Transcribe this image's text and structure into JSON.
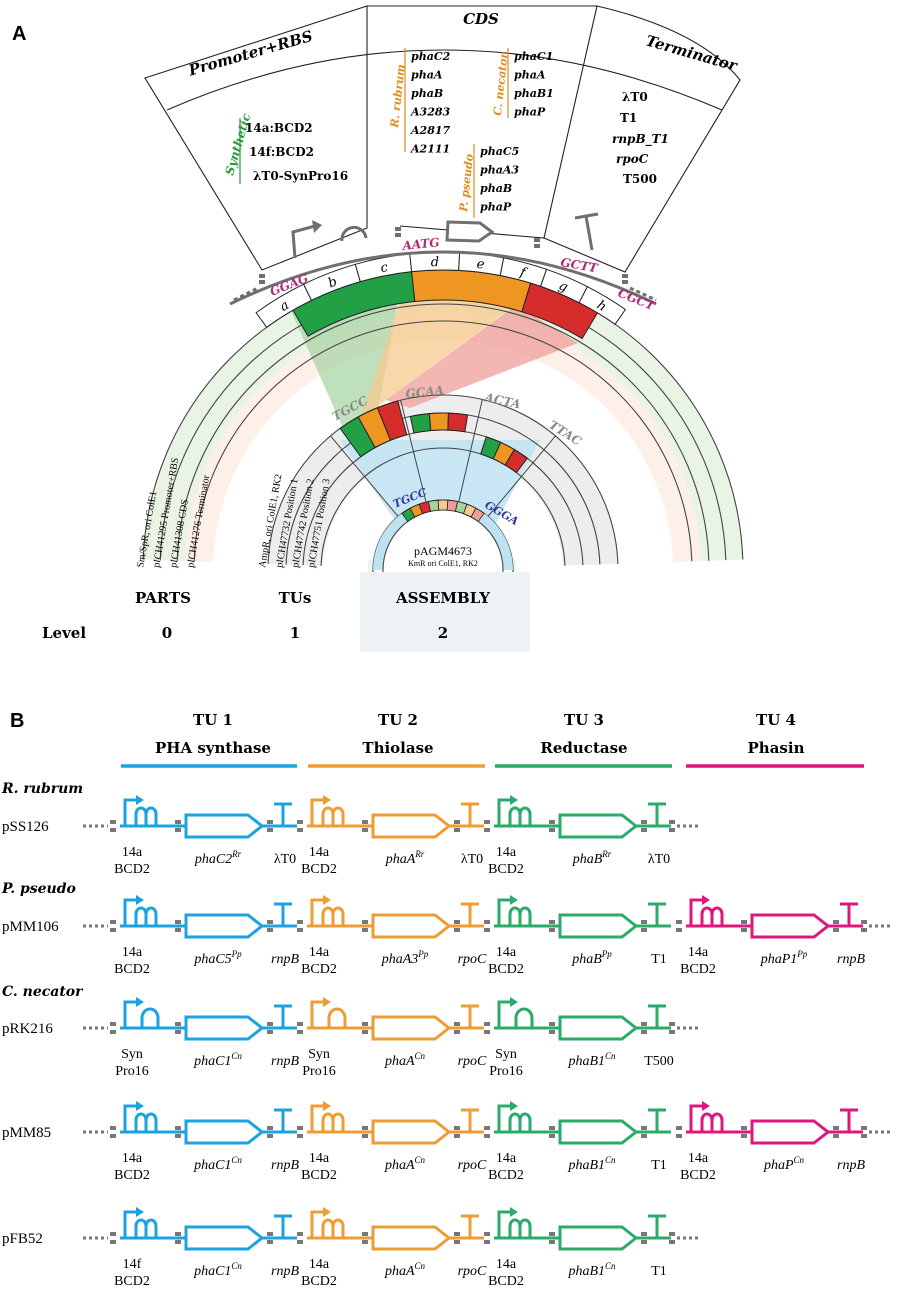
{
  "panelA": {
    "label": "A",
    "headers": [
      "Promoter+RBS",
      "CDS",
      "Terminator"
    ],
    "promoter": {
      "group": "Synthetic",
      "items": [
        "14a:BCD2",
        "14f:BCD2",
        "λT0-SynPro16"
      ]
    },
    "cds": {
      "rrubrum": {
        "group": "R. rubrum",
        "items": [
          "phaC2",
          "phaA",
          "phaB",
          "A3283",
          "A2817",
          "A2111"
        ]
      },
      "cnecator": {
        "group": "C. necator",
        "items": [
          "phaC1",
          "phaA",
          "phaB1",
          "phaP"
        ]
      },
      "ppseudo": {
        "group": "P. pseudo",
        "items": [
          "phaC5",
          "phaA3",
          "phaB",
          "phaP"
        ]
      }
    },
    "terminator": {
      "items": [
        "λT0",
        "T1",
        "rnpB_T1",
        "rpoC",
        "T500"
      ]
    },
    "overhangs": [
      "GGAG",
      "AATG",
      "GCTT",
      "CGCT"
    ],
    "slots": [
      "a",
      "b",
      "c",
      "d",
      "e",
      "f",
      "g",
      "h"
    ],
    "tu_overhangs": [
      "TGCC",
      "GCAA",
      "ACTA",
      "TTAC"
    ],
    "asm_overhangs": [
      "TGCC",
      "GGGA"
    ],
    "level0_plasmids": [
      "Sm/SpR, ori ColE1",
      "pICH41295 Promoter+RBS",
      "pICH41308  CDS",
      "pICH41276  Terminator"
    ],
    "level1_plasmids": [
      "AmpR, ori ColE1, RK2",
      "pICH47732 Position 1",
      "pICH47742 Position 2",
      "pICH47751 Position 3"
    ],
    "final": {
      "name": "pAGM4673",
      "desc": "KmR ori ColE1, RK2"
    },
    "columns": [
      "PARTS",
      "TUs",
      "ASSEMBLY"
    ],
    "level_label": "Level",
    "levels": [
      "0",
      "1",
      "2"
    ]
  },
  "panelB": {
    "label": "B",
    "tus": [
      {
        "title": "TU 1",
        "name": "PHA synthase",
        "color": "#1aa3e0"
      },
      {
        "title": "TU 2",
        "name": "Thiolase",
        "color": "#ee9c34"
      },
      {
        "title": "TU 3",
        "name": "Reductase",
        "color": "#2bab6a"
      },
      {
        "title": "TU 4",
        "name": "Phasin",
        "color": "#e0167f"
      }
    ],
    "organisms": [
      "R. rubrum",
      "P. pseudo",
      "C. necator"
    ],
    "rows": [
      {
        "plasmid": "pSS126",
        "units": [
          {
            "rbs": "bcd",
            "p1": "14a",
            "p2": "BCD2",
            "gene": "phaC2",
            "sup": "Rr",
            "term": "λT0",
            "term_italic": false
          },
          {
            "rbs": "bcd",
            "p1": "14a",
            "p2": "BCD2",
            "gene": "phaA",
            "sup": "Rr",
            "term": "λT0",
            "term_italic": false
          },
          {
            "rbs": "bcd",
            "p1": "14a",
            "p2": "BCD2",
            "gene": "phaB",
            "sup": "Rr",
            "term": "λT0",
            "term_italic": false
          }
        ]
      },
      {
        "plasmid": "pMM106",
        "units": [
          {
            "rbs": "bcd",
            "p1": "14a",
            "p2": "BCD2",
            "gene": "phaC5",
            "sup": "Pp",
            "term": "rnpB",
            "term_italic": true
          },
          {
            "rbs": "bcd",
            "p1": "14a",
            "p2": "BCD2",
            "gene": "phaA3",
            "sup": "Pp",
            "term": "rpoC",
            "term_italic": true
          },
          {
            "rbs": "bcd",
            "p1": "14a",
            "p2": "BCD2",
            "gene": "phaB",
            "sup": "Pp",
            "term": "T1",
            "term_italic": false
          },
          {
            "rbs": "bcd",
            "p1": "14a",
            "p2": "BCD2",
            "gene": "phaP1",
            "sup": "Pp",
            "term": "rnpB",
            "term_italic": true
          }
        ]
      },
      {
        "plasmid": "pRK216",
        "units": [
          {
            "rbs": "single",
            "p1": "Syn",
            "p2": "Pro16",
            "gene": "phaC1",
            "sup": "Cn",
            "term": "rnpB",
            "term_italic": true
          },
          {
            "rbs": "single",
            "p1": "Syn",
            "p2": "Pro16",
            "gene": "phaA",
            "sup": "Cn",
            "term": "rpoC",
            "term_italic": true
          },
          {
            "rbs": "single",
            "p1": "Syn",
            "p2": "Pro16",
            "gene": "phaB1",
            "sup": "Cn",
            "term": "T500",
            "term_italic": false
          }
        ]
      },
      {
        "plasmid": "pMM85",
        "units": [
          {
            "rbs": "bcd",
            "p1": "14a",
            "p2": "BCD2",
            "gene": "phaC1",
            "sup": "Cn",
            "term": "rnpB",
            "term_italic": true
          },
          {
            "rbs": "bcd",
            "p1": "14a",
            "p2": "BCD2",
            "gene": "phaA",
            "sup": "Cn",
            "term": "rpoC",
            "term_italic": true
          },
          {
            "rbs": "bcd",
            "p1": "14a",
            "p2": "BCD2",
            "gene": "phaB1",
            "sup": "Cn",
            "term": "T1",
            "term_italic": false
          },
          {
            "rbs": "bcd",
            "p1": "14a",
            "p2": "BCD2",
            "gene": "phaP",
            "sup": "Cn",
            "term": "rnpB",
            "term_italic": true
          }
        ]
      },
      {
        "plasmid": "pFB52",
        "units": [
          {
            "rbs": "bcd",
            "p1": "14f",
            "p2": "BCD2",
            "gene": "phaC1",
            "sup": "Cn",
            "term": "rnpB",
            "term_italic": true
          },
          {
            "rbs": "bcd",
            "p1": "14a",
            "p2": "BCD2",
            "gene": "phaA",
            "sup": "Cn",
            "term": "rpoC",
            "term_italic": true
          },
          {
            "rbs": "bcd",
            "p1": "14a",
            "p2": "BCD2",
            "gene": "phaB1",
            "sup": "Cn",
            "term": "T1",
            "term_italic": false
          }
        ]
      }
    ]
  },
  "colors": {
    "part_green": "#22a045",
    "part_orange": "#ee9522",
    "part_red": "#d62c2c",
    "overhang_magenta": "#b4287a",
    "overhang_grey": "#8a8a8a",
    "overhang_blue": "#2f3a9a",
    "group_orange": "#e08a1c",
    "group_green": "#2a9a3e",
    "glyph_grey": "#6f6f6f",
    "light_blue": "#bfe2f2",
    "light_green": "#dff0d8",
    "light_peach": "#f9e2d3",
    "light_grey": "#e6e6e6"
  }
}
